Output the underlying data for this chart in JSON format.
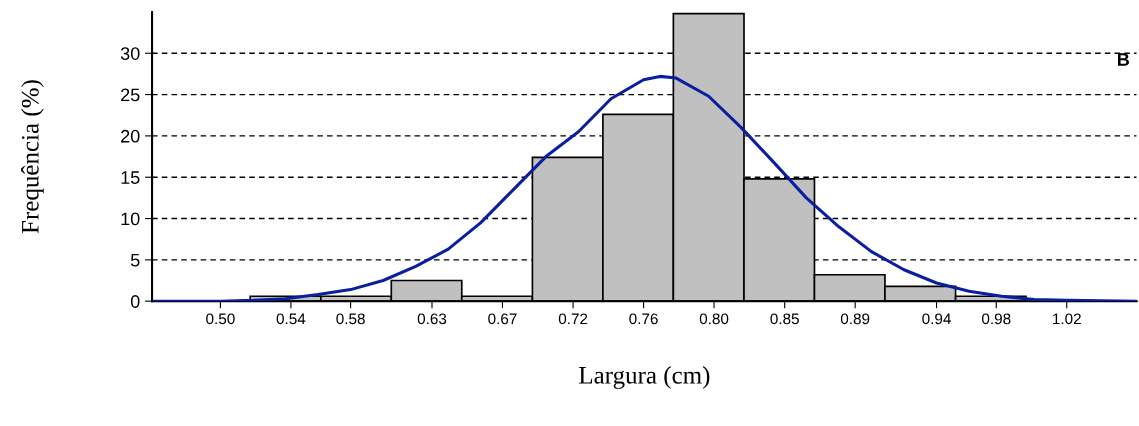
{
  "chart_data": {
    "type": "histogram",
    "xlabel": "Largura (cm)",
    "ylabel": "Frequência (%)",
    "annotations": [
      "B"
    ],
    "bins": [
      0.5183,
      0.5617,
      0.605,
      0.6483,
      0.6917,
      0.735,
      0.7783,
      0.8217,
      0.865,
      0.9083,
      0.9517,
      0.995
    ],
    "series": [
      {
        "color": "#c0c0c0",
        "values": [
          0.6,
          0.6,
          2.5,
          0.6,
          17.4,
          22.6,
          34.8,
          14.8,
          3.2,
          1.8,
          0.6
        ]
      },
      {
        "type": "line",
        "color": "#0a1fa0",
        "x": [
          0.458,
          0.5,
          0.52,
          0.54,
          0.56,
          0.58,
          0.6,
          0.62,
          0.64,
          0.66,
          0.68,
          0.7,
          0.72,
          0.74,
          0.76,
          0.77,
          0.78,
          0.8,
          0.82,
          0.84,
          0.86,
          0.88,
          0.9,
          0.92,
          0.94,
          0.96,
          0.98,
          1.0,
          1.02,
          1.063
        ],
        "values": [
          0,
          0,
          0.1,
          0.3,
          0.8,
          1.4,
          2.5,
          4.2,
          6.3,
          9.5,
          13.5,
          17.5,
          20.5,
          24.5,
          26.8,
          27.2,
          27,
          24.8,
          21,
          16.8,
          12.5,
          9,
          6,
          3.8,
          2.2,
          1.2,
          0.6,
          0.2,
          0.1,
          0
        ]
      }
    ],
    "xlim": [
      0.458,
      1.063
    ],
    "xticks": [
      {
        "value": 0.5,
        "label": "0.50"
      },
      {
        "value": 0.5433,
        "label": "0.54"
      },
      {
        "value": 0.58,
        "label": "0.58"
      },
      {
        "value": 0.63,
        "label": "0.63"
      },
      {
        "value": 0.6733,
        "label": "0.67"
      },
      {
        "value": 0.7167,
        "label": "0.72"
      },
      {
        "value": 0.76,
        "label": "0.76"
      },
      {
        "value": 0.8033,
        "label": "0.80"
      },
      {
        "value": 0.8467,
        "label": "0.85"
      },
      {
        "value": 0.89,
        "label": "0.89"
      },
      {
        "value": 0.94,
        "label": "0.94"
      },
      {
        "value": 0.9767,
        "label": "0.98"
      },
      {
        "value": 1.02,
        "label": "1.02"
      }
    ],
    "ylim": [
      0,
      35
    ],
    "yticks": [
      0,
      5,
      10,
      15,
      20,
      25,
      30
    ],
    "grid": "y",
    "line_style": "solid",
    "marker": "none"
  }
}
